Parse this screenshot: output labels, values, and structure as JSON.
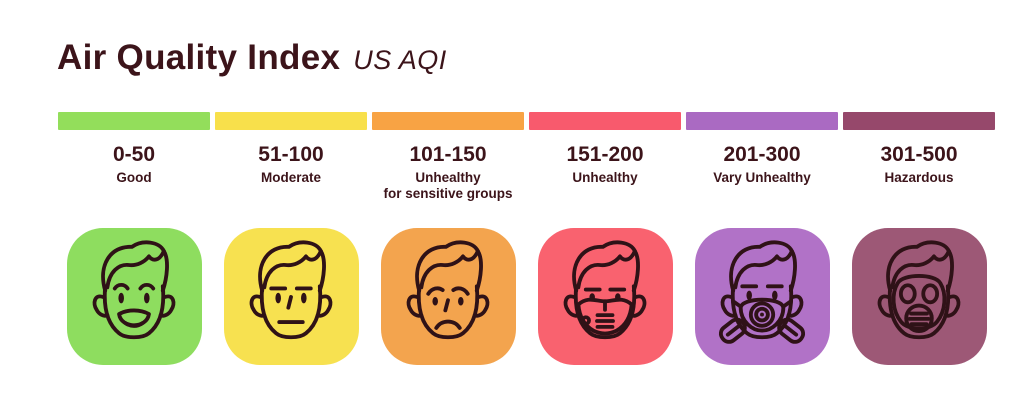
{
  "title": "Air Quality Index",
  "subtitle": "US AQI",
  "text_color": "#3c141a",
  "icon_stroke_color": "#2f1217",
  "background_color": "#ffffff",
  "categories": [
    {
      "range": "0-50",
      "label": "Good",
      "label_lines": [
        "Good"
      ],
      "severity": "good",
      "bar_color": "#93de5b",
      "tile_color": "#8edd5f",
      "icon": "happy-face-icon"
    },
    {
      "range": "51-100",
      "label": "Moderate",
      "label_lines": [
        "Moderate"
      ],
      "severity": "moderate",
      "bar_color": "#f8e04b",
      "tile_color": "#f7e150",
      "icon": "neutral-face-icon"
    },
    {
      "range": "101-150",
      "label": "Unhealthy for sensitive groups",
      "label_lines": [
        "Unhealthy",
        "for sensitive groups"
      ],
      "severity": "unhealthy-for-sensitive-groups",
      "bar_color": "#f8a344",
      "tile_color": "#f3a44e",
      "icon": "worried-face-icon"
    },
    {
      "range": "151-200",
      "label": "Unhealthy",
      "label_lines": [
        "Unhealthy"
      ],
      "severity": "unhealthy",
      "bar_color": "#f85a6d",
      "tile_color": "#f9626f",
      "icon": "cloth-mask-face-icon"
    },
    {
      "range": "201-300",
      "label": "Vary Unhealthy",
      "label_lines": [
        "Vary Unhealthy"
      ],
      "severity": "very-unhealthy",
      "bar_color": "#aa6ac2",
      "tile_color": "#b172c7",
      "icon": "respirator-face-icon"
    },
    {
      "range": "301-500",
      "label": "Hazardous",
      "label_lines": [
        "Hazardous"
      ],
      "severity": "hazardous",
      "bar_color": "#96486b",
      "tile_color": "#9d5876",
      "icon": "gas-mask-face-icon"
    }
  ]
}
